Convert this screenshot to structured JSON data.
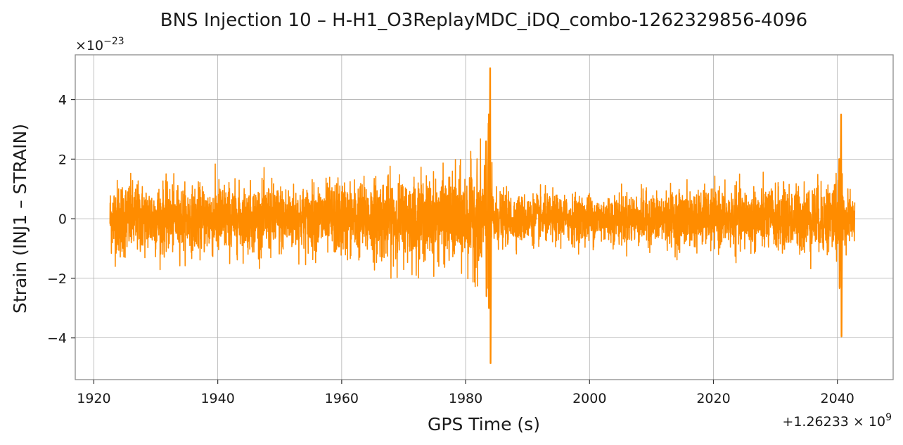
{
  "chart_data": {
    "type": "line",
    "title": "BNS Injection 10 – H-H1_O3ReplayMDC_iDQ_combo-1262329856-4096",
    "xlabel": "GPS Time (s)",
    "ylabel": "Strain (INJ1 – STRAIN)",
    "x_offset_text": "+1.26233 × 10",
    "x_offset_exp": "9",
    "y_scale_text": "×10",
    "y_scale_exp": "−23",
    "xlim": [
      1917,
      2049
    ],
    "ylim": [
      -5.4,
      5.5
    ],
    "xticks": [
      1920,
      1940,
      1960,
      1980,
      2000,
      2020,
      2040
    ],
    "xtick_labels": [
      "1920",
      "1940",
      "1960",
      "1980",
      "2000",
      "2020",
      "2040"
    ],
    "yticks": [
      -4,
      -2,
      0,
      2,
      4
    ],
    "ytick_labels": [
      "−4",
      "−2",
      "0",
      "2",
      "4"
    ],
    "grid": true,
    "series": [
      {
        "color": "#ff8c00",
        "x_range": [
          1922.6,
          2042.8
        ],
        "envelope": [
          [
            1922.6,
            1.3
          ],
          [
            1924,
            1.55
          ],
          [
            1926,
            1.45
          ],
          [
            1928,
            1.35
          ],
          [
            1930,
            1.4
          ],
          [
            1932,
            1.3
          ],
          [
            1934,
            1.3
          ],
          [
            1936,
            1.2
          ],
          [
            1938,
            1.35
          ],
          [
            1940,
            1.5
          ],
          [
            1942,
            1.35
          ],
          [
            1944,
            1.25
          ],
          [
            1946,
            1.3
          ],
          [
            1948,
            1.4
          ],
          [
            1950,
            1.35
          ],
          [
            1952,
            1.3
          ],
          [
            1954,
            1.25
          ],
          [
            1956,
            1.35
          ],
          [
            1958,
            1.4
          ],
          [
            1960,
            1.5
          ],
          [
            1962,
            1.45
          ],
          [
            1964,
            1.5
          ],
          [
            1966,
            1.6
          ],
          [
            1968,
            1.6
          ],
          [
            1970,
            1.55
          ],
          [
            1972,
            1.6
          ],
          [
            1974,
            1.55
          ],
          [
            1976,
            1.6
          ],
          [
            1978,
            1.7
          ],
          [
            1980,
            1.9
          ],
          [
            1982,
            2.1
          ],
          [
            1983.3,
            2.4
          ],
          [
            1983.9,
            3.0
          ],
          [
            1984.4,
            1.2
          ],
          [
            1986,
            1.0
          ],
          [
            1988,
            0.95
          ],
          [
            1990,
            0.9
          ],
          [
            1992,
            0.95
          ],
          [
            1994,
            0.95
          ],
          [
            1996,
            0.9
          ],
          [
            1998,
            0.95
          ],
          [
            2000,
            0.95
          ],
          [
            2002,
            0.95
          ],
          [
            2004,
            0.95
          ],
          [
            2006,
            1.0
          ],
          [
            2008,
            1.0
          ],
          [
            2010,
            1.0
          ],
          [
            2012,
            1.05
          ],
          [
            2014,
            1.1
          ],
          [
            2016,
            1.15
          ],
          [
            2018,
            1.1
          ],
          [
            2020,
            1.15
          ],
          [
            2022,
            1.1
          ],
          [
            2024,
            1.2
          ],
          [
            2026,
            1.2
          ],
          [
            2028,
            1.25
          ],
          [
            2030,
            1.2
          ],
          [
            2032,
            1.25
          ],
          [
            2034,
            1.3
          ],
          [
            2036,
            1.35
          ],
          [
            2038,
            1.4
          ],
          [
            2039.5,
            1.6
          ],
          [
            2040.4,
            1.9
          ],
          [
            2041.2,
            1.0
          ],
          [
            2042.8,
            0.9
          ]
        ],
        "spikes": [
          {
            "x": 1983.96,
            "max": 5.05,
            "min": -4.85
          },
          {
            "x": 1983.7,
            "max": 3.2,
            "min": -3.0
          },
          {
            "x": 1983.3,
            "max": 2.6,
            "min": -2.6
          },
          {
            "x": 2040.6,
            "max": 3.5,
            "min": -3.95
          },
          {
            "x": 2040.3,
            "max": 2.0,
            "min": -2.3
          }
        ]
      }
    ]
  }
}
